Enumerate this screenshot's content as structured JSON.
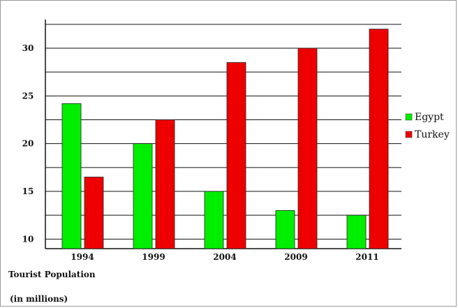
{
  "chart_data": {
    "type": "bar",
    "title": "",
    "xlabel": "",
    "ylabel": "",
    "categories": [
      "1994",
      "1999",
      "2004",
      "2009",
      "2011"
    ],
    "series": [
      {
        "name": "Egypt",
        "color": "#00ee00",
        "values": [
          24.2,
          20.0,
          15.0,
          13.0,
          12.5
        ]
      },
      {
        "name": "Turkey",
        "color": "#ee0000",
        "values": [
          16.5,
          22.5,
          28.5,
          30.0,
          32.0
        ]
      }
    ],
    "ylim": [
      9,
      33
    ],
    "yticks": [
      10,
      15,
      20,
      25,
      30
    ],
    "grid": true,
    "legend_position": "right"
  },
  "notes": {
    "line1": "Tourist Population",
    "line2": "(in millions)"
  }
}
